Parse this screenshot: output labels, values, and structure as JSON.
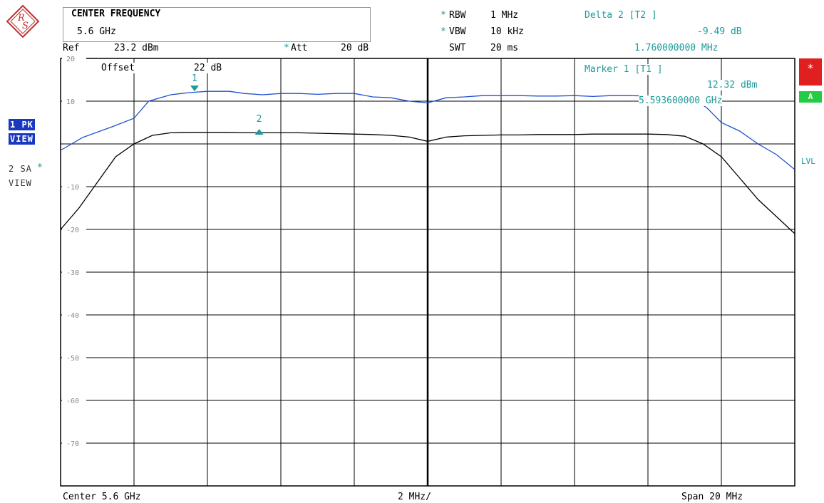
{
  "header": {
    "center_frequency_label": "CENTER FREQUENCY",
    "center_frequency_value": "5.6 GHz",
    "ref_label": "Ref",
    "ref_value": "23.2 dBm",
    "att_label": "Att",
    "att_value": "20 dB",
    "rbw_label": "RBW",
    "rbw_value": "1 MHz",
    "vbw_label": "VBW",
    "vbw_value": "10 kHz",
    "swt_label": "SWT",
    "swt_value": "20 ms",
    "star": "*"
  },
  "delta_marker": {
    "title": "Delta 2 [T2 ]",
    "level": "-9.49 dB",
    "frequency": "1.760000000 MHz"
  },
  "marker1": {
    "title": "Marker 1 [T1 ]",
    "level": "12.32 dBm",
    "frequency": "5.593600000 GHz"
  },
  "offset_label": "Offset",
  "offset_value": "22 dB",
  "side_labels": {
    "trace1_mode": "1 PK",
    "trace1_view": "VIEW",
    "trace2_mode": "2 SA",
    "trace2_view": "VIEW",
    "lvl": "LVL",
    "star_box": "*",
    "a_box": "A"
  },
  "footer": {
    "center": "Center 5.6 GHz",
    "div": "2 MHz/",
    "span": "Span 20 MHz"
  },
  "colors": {
    "trace1": "#2050d0",
    "trace2": "#000000",
    "marker": "#1a9a9a",
    "grid": "#000000",
    "red_box": "#e02020",
    "green_box": "#22cc44"
  },
  "chart_data": {
    "type": "line",
    "xlim": [
      -10,
      10
    ],
    "ylim": [
      -80,
      20
    ],
    "y_ticks": [
      {
        "v": 20,
        "label": "20"
      },
      {
        "v": 10,
        "label": "10"
      },
      {
        "v": -10,
        "label": "-10"
      },
      {
        "v": -20,
        "label": "-20"
      },
      {
        "v": -30,
        "label": "-30"
      },
      {
        "v": -40,
        "label": "-40"
      },
      {
        "v": -50,
        "label": "-50"
      },
      {
        "v": -60,
        "label": "-60"
      },
      {
        "v": -70,
        "label": "-70"
      }
    ],
    "grid": true,
    "series": [
      {
        "name": "1 PK VIEW",
        "color": "#2050d0",
        "x": [
          -10,
          -9.4,
          -8.6,
          -8,
          -7.6,
          -7,
          -6.5,
          -6,
          -5.4,
          -5,
          -4.5,
          -4,
          -3.5,
          -3,
          -2.5,
          -2,
          -1.5,
          -1,
          -0.5,
          0,
          0.5,
          1,
          1.5,
          2,
          2.5,
          3,
          3.5,
          4,
          4.5,
          5,
          5.5,
          6,
          6.5,
          7,
          7.2,
          7.6,
          8,
          8.5,
          9,
          9.5,
          10
        ],
        "y": [
          -1.5,
          1.5,
          4,
          6,
          10,
          11.5,
          12,
          12.3,
          12.3,
          11.8,
          11.5,
          11.8,
          11.8,
          11.6,
          11.8,
          11.8,
          11,
          10.8,
          10,
          9.6,
          10.8,
          11,
          11.3,
          11.3,
          11.3,
          11.2,
          11.2,
          11.3,
          11.1,
          11.3,
          11.3,
          11.2,
          11.1,
          11.0,
          10.5,
          8.5,
          5,
          3,
          0,
          -2.5,
          -6
        ]
      },
      {
        "name": "2 SA VIEW",
        "color": "#000000",
        "x": [
          -10,
          -9.5,
          -9,
          -8.5,
          -8,
          -7.5,
          -7,
          -6.5,
          -6,
          -5.5,
          -5,
          -4.5,
          -4,
          -3.5,
          -3,
          -2.5,
          -2,
          -1.5,
          -1,
          -0.5,
          0,
          0.5,
          1,
          1.5,
          2,
          2.5,
          3,
          3.5,
          4,
          4.5,
          5,
          5.5,
          6,
          6.5,
          7,
          7.5,
          8,
          8.5,
          9,
          9.5,
          10
        ],
        "y": [
          -20,
          -15,
          -9,
          -3,
          0,
          2,
          2.6,
          2.7,
          2.7,
          2.7,
          2.6,
          2.6,
          2.6,
          2.6,
          2.5,
          2.4,
          2.3,
          2.2,
          2.0,
          1.6,
          0.6,
          1.6,
          1.9,
          2.0,
          2.1,
          2.1,
          2.2,
          2.2,
          2.2,
          2.3,
          2.3,
          2.3,
          2.3,
          2.2,
          1.8,
          0,
          -3,
          -8,
          -13,
          -17,
          -21
        ]
      }
    ],
    "markers": [
      {
        "id": "1",
        "label": "1",
        "x": -6.35,
        "y": 12.32,
        "series": 0,
        "direction": "down"
      },
      {
        "id": "2",
        "label": "2",
        "x": -4.59,
        "y": 2.83,
        "series": 1,
        "direction": "up"
      }
    ]
  }
}
